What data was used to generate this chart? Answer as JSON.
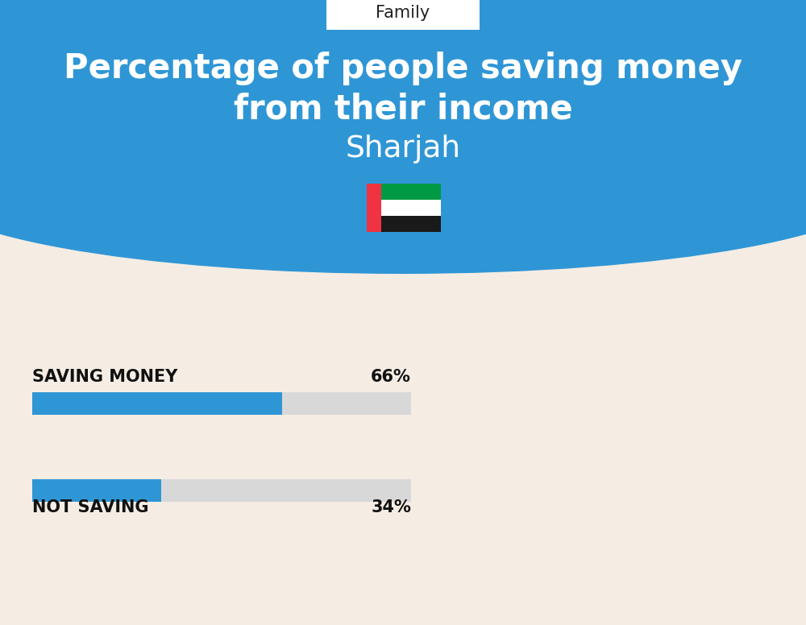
{
  "title_line1": "Percentage of people saving money",
  "title_line2": "from their income",
  "subtitle": "Sharjah",
  "category_label": "Family",
  "bar1_label": "SAVING MONEY",
  "bar1_value": 66,
  "bar1_pct": "66%",
  "bar2_label": "NOT SAVING",
  "bar2_value": 34,
  "bar2_pct": "34%",
  "bar_color": "#2F96D6",
  "bar_bg_color": "#D8D8D8",
  "header_bg": "#2F96D6",
  "page_bg": "#F5EDE4",
  "title_color": "#FFFFFF",
  "subtitle_color": "#FFFFFF",
  "label_color": "#111111",
  "tag_bg": "#FFFFFF",
  "tag_text": "#222222",
  "fig_width": 10.0,
  "fig_height": 7.76
}
